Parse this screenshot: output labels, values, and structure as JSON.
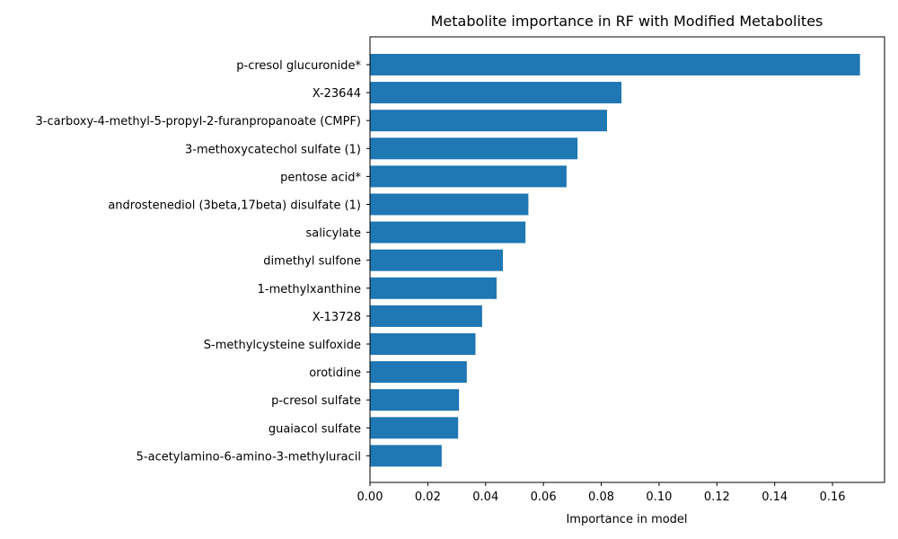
{
  "chart_data": {
    "type": "bar",
    "orientation": "horizontal",
    "title": "Metabolite importance in RF with Modified Metabolites",
    "xlabel": "Importance in model",
    "ylabel": "",
    "xlim": [
      0,
      0.178
    ],
    "xticks": [
      "0.00",
      "0.02",
      "0.04",
      "0.06",
      "0.08",
      "0.10",
      "0.12",
      "0.14",
      "0.16"
    ],
    "grid": false,
    "bar_color": "#1f77b4",
    "categories": [
      "p-cresol glucuronide*",
      "X-23644",
      "3-carboxy-4-methyl-5-propyl-2-furanpropanoate (CMPF)",
      "3-methoxycatechol sulfate (1)",
      "pentose acid*",
      "androstenediol (3beta,17beta) disulfate (1)",
      "salicylate",
      "dimethyl sulfone",
      "1-methylxanthine",
      "X-13728",
      "S-methylcysteine sulfoxide",
      "orotidine",
      "p-cresol sulfate",
      "guaiacol sulfate",
      "5-acetylamino-6-amino-3-methyluracil"
    ],
    "values": [
      0.1695,
      0.087,
      0.082,
      0.0718,
      0.068,
      0.0548,
      0.0538,
      0.046,
      0.0438,
      0.0388,
      0.0365,
      0.0335,
      0.0308,
      0.0305,
      0.0248
    ]
  }
}
